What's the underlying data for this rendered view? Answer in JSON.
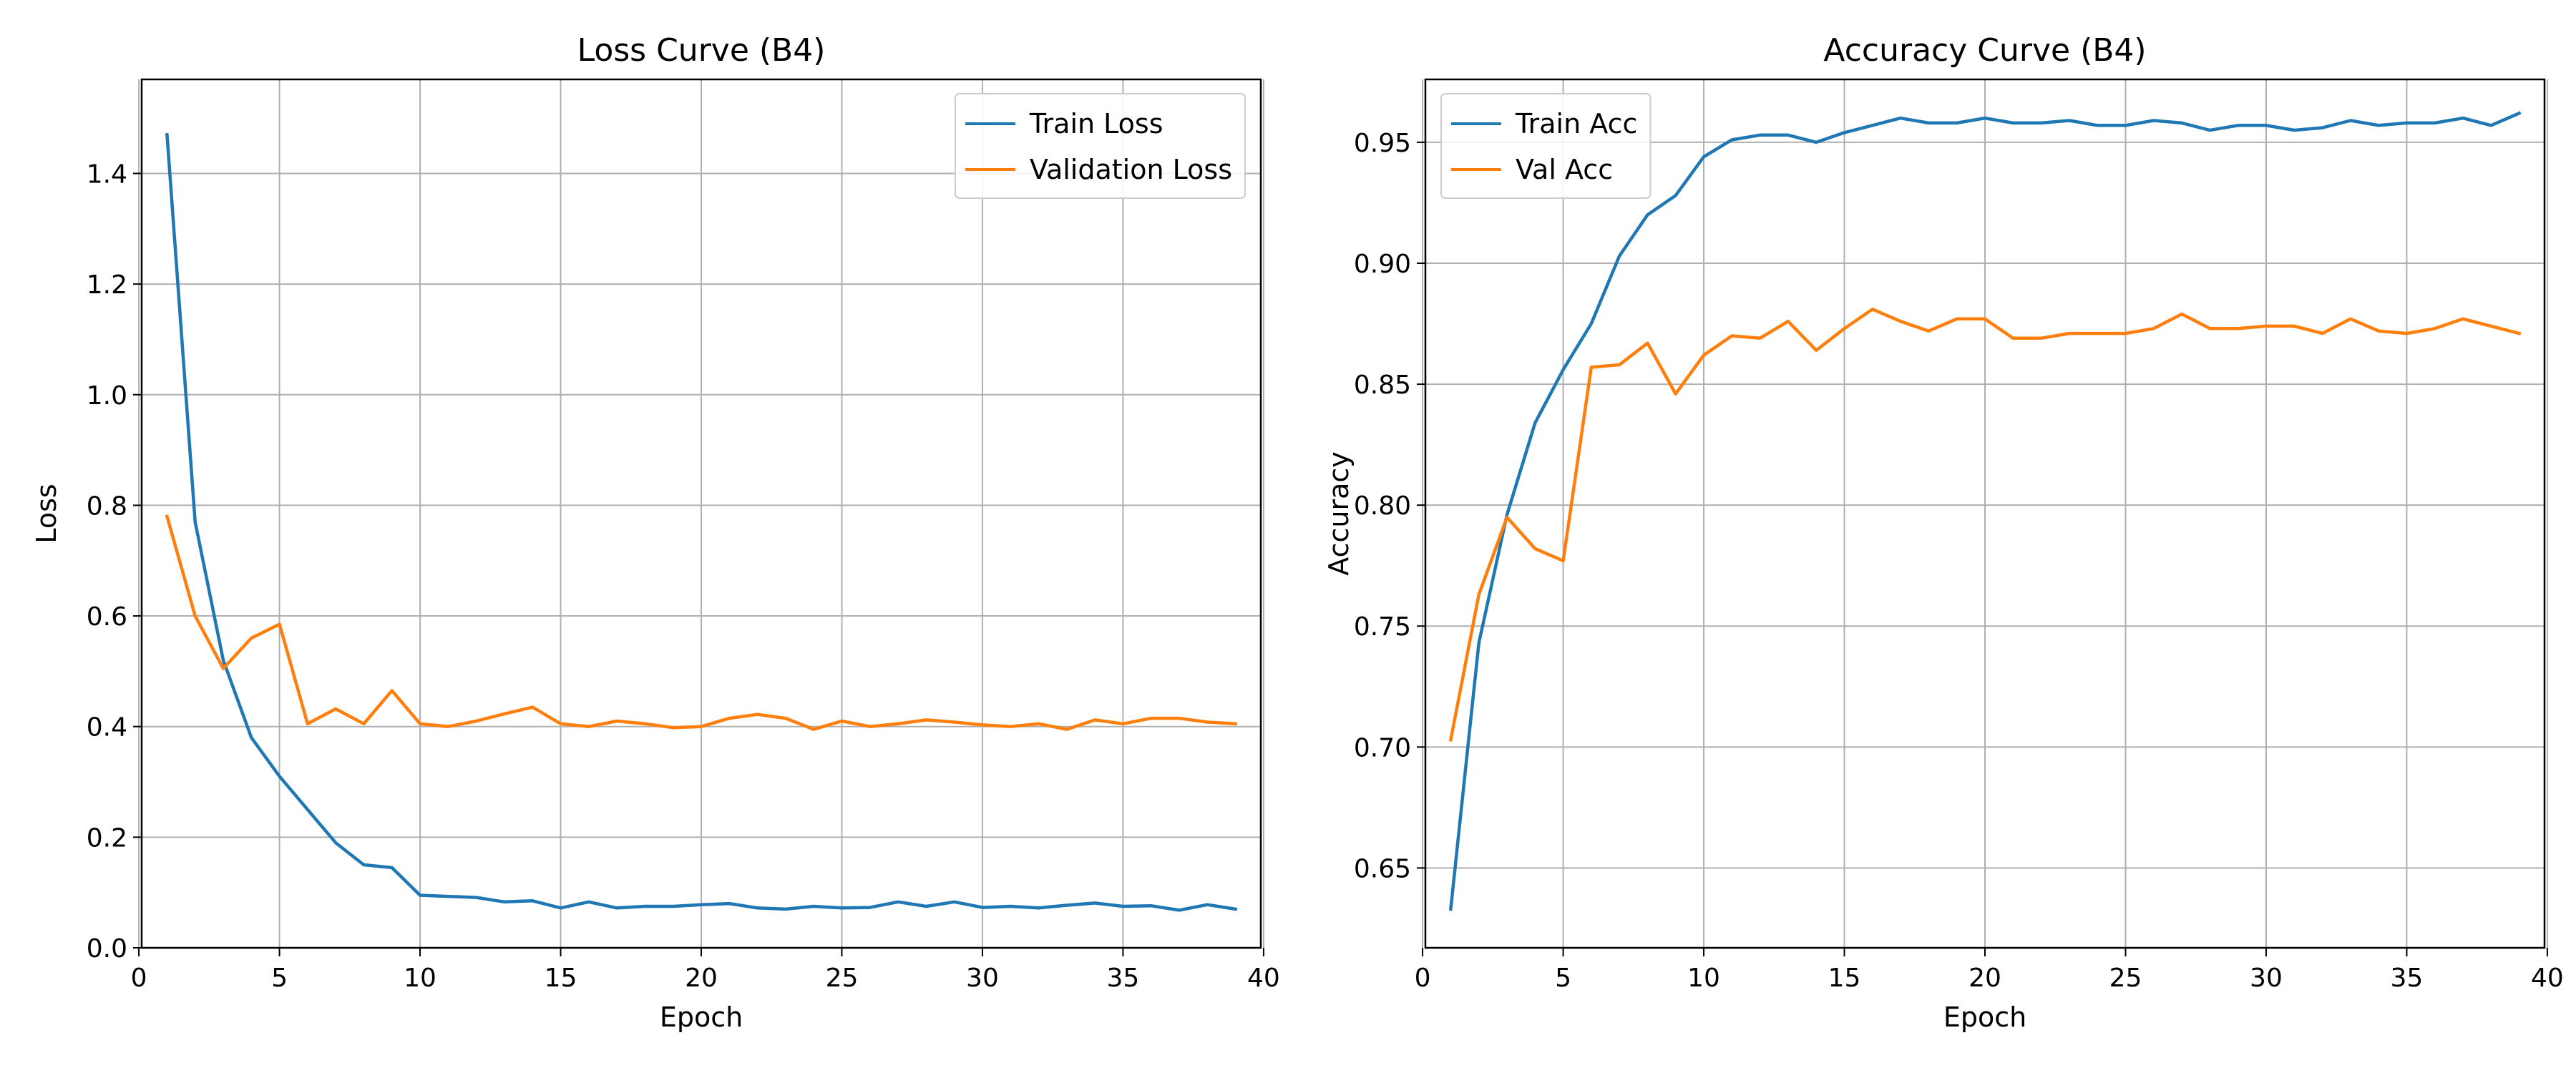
{
  "chart_data": [
    {
      "type": "line",
      "title": "Loss Curve (B4)",
      "xlabel": "Epoch",
      "ylabel": "Loss",
      "xlim": [
        0.1,
        39.9
      ],
      "ylim": [
        0.0,
        1.57
      ],
      "xticks": [
        0,
        5,
        10,
        15,
        20,
        25,
        30,
        35,
        40
      ],
      "yticks": [
        0.0,
        0.2,
        0.4,
        0.6,
        0.8,
        1.0,
        1.2,
        1.4
      ],
      "ytick_decimals": 1,
      "grid": true,
      "legend": "upper right",
      "x": [
        1,
        2,
        3,
        4,
        5,
        6,
        7,
        8,
        9,
        10,
        11,
        12,
        13,
        14,
        15,
        16,
        17,
        18,
        19,
        20,
        21,
        22,
        23,
        24,
        25,
        26,
        27,
        28,
        29,
        30,
        31,
        32,
        33,
        34,
        35,
        36,
        37,
        38,
        39
      ],
      "series": [
        {
          "name": "Train Loss",
          "color": "#1f77b4",
          "values": [
            1.47,
            0.77,
            0.52,
            0.38,
            0.31,
            0.25,
            0.19,
            0.15,
            0.145,
            0.095,
            0.093,
            0.091,
            0.083,
            0.085,
            0.072,
            0.083,
            0.072,
            0.075,
            0.075,
            0.078,
            0.08,
            0.072,
            0.07,
            0.075,
            0.072,
            0.073,
            0.083,
            0.075,
            0.083,
            0.073,
            0.075,
            0.072,
            0.077,
            0.081,
            0.075,
            0.076,
            0.068,
            0.078,
            0.07
          ]
        },
        {
          "name": "Validation Loss",
          "color": "#ff7f0e",
          "values": [
            0.78,
            0.6,
            0.505,
            0.56,
            0.585,
            0.405,
            0.432,
            0.405,
            0.465,
            0.405,
            0.4,
            0.41,
            0.423,
            0.435,
            0.405,
            0.4,
            0.41,
            0.405,
            0.398,
            0.4,
            0.415,
            0.422,
            0.415,
            0.395,
            0.41,
            0.4,
            0.405,
            0.412,
            0.408,
            0.403,
            0.4,
            0.405,
            0.395,
            0.412,
            0.405,
            0.415,
            0.415,
            0.408,
            0.405
          ]
        }
      ]
    },
    {
      "type": "line",
      "title": "Accuracy Curve (B4)",
      "xlabel": "Epoch",
      "ylabel": "Accuracy",
      "xlim": [
        0.1,
        39.9
      ],
      "ylim": [
        0.617,
        0.976
      ],
      "xticks": [
        0,
        5,
        10,
        15,
        20,
        25,
        30,
        35,
        40
      ],
      "yticks": [
        0.65,
        0.7,
        0.75,
        0.8,
        0.85,
        0.9,
        0.95
      ],
      "ytick_decimals": 2,
      "grid": true,
      "legend": "upper left",
      "x": [
        1,
        2,
        3,
        4,
        5,
        6,
        7,
        8,
        9,
        10,
        11,
        12,
        13,
        14,
        15,
        16,
        17,
        18,
        19,
        20,
        21,
        22,
        23,
        24,
        25,
        26,
        27,
        28,
        29,
        30,
        31,
        32,
        33,
        34,
        35,
        36,
        37,
        38,
        39
      ],
      "series": [
        {
          "name": "Train Acc",
          "color": "#1f77b4",
          "values": [
            0.633,
            0.743,
            0.796,
            0.834,
            0.856,
            0.875,
            0.903,
            0.92,
            0.928,
            0.944,
            0.951,
            0.953,
            0.953,
            0.95,
            0.954,
            0.957,
            0.96,
            0.958,
            0.958,
            0.96,
            0.958,
            0.958,
            0.959,
            0.957,
            0.957,
            0.959,
            0.958,
            0.955,
            0.957,
            0.957,
            0.955,
            0.956,
            0.959,
            0.957,
            0.958,
            0.958,
            0.96,
            0.957,
            0.962
          ]
        },
        {
          "name": "Val Acc",
          "color": "#ff7f0e",
          "values": [
            0.703,
            0.763,
            0.795,
            0.782,
            0.777,
            0.857,
            0.858,
            0.867,
            0.846,
            0.862,
            0.87,
            0.869,
            0.876,
            0.864,
            0.873,
            0.881,
            0.876,
            0.872,
            0.877,
            0.877,
            0.869,
            0.869,
            0.871,
            0.871,
            0.871,
            0.873,
            0.879,
            0.873,
            0.873,
            0.874,
            0.874,
            0.871,
            0.877,
            0.872,
            0.871,
            0.873,
            0.877,
            0.874,
            0.871
          ]
        }
      ]
    }
  ]
}
